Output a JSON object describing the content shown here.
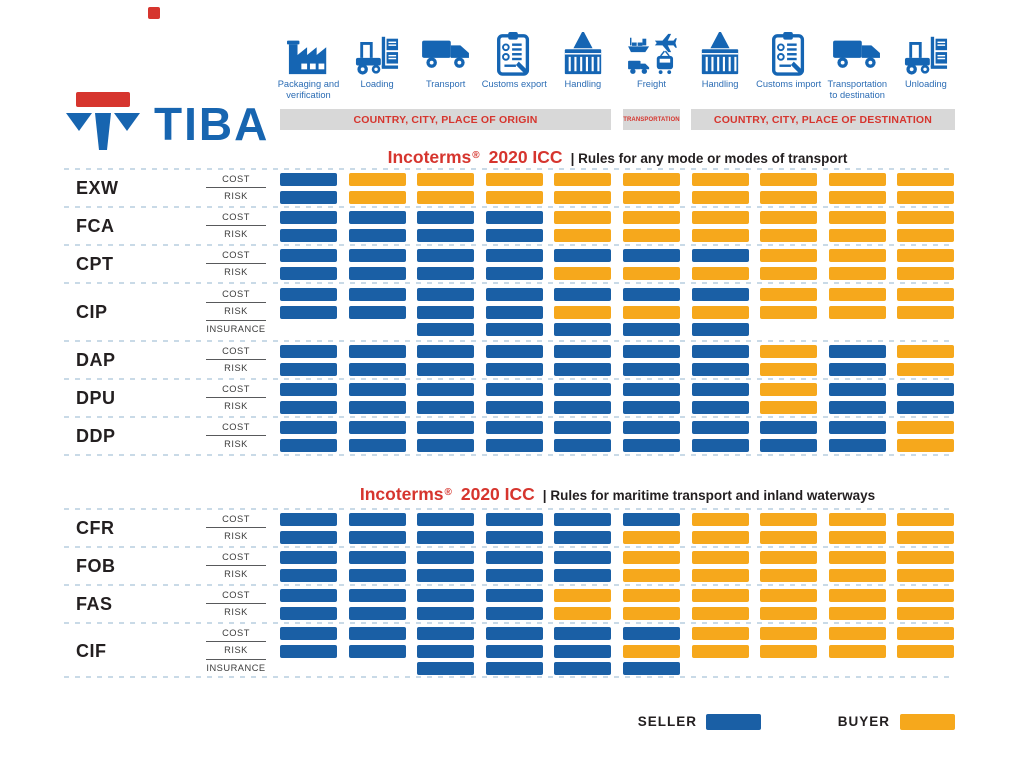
{
  "brand": {
    "name": "TIBA"
  },
  "stages": [
    {
      "label": "Packaging and verification",
      "icon": "factory-icon"
    },
    {
      "label": "Loading",
      "icon": "forklift-icon"
    },
    {
      "label": "Transport",
      "icon": "truck-icon"
    },
    {
      "label": "Customs export",
      "icon": "customs-clipboard-icon"
    },
    {
      "label": "Handling",
      "icon": "crane-container-icon"
    },
    {
      "label": "Freight",
      "icon": "multimodal-freight-icon"
    },
    {
      "label": "Handling",
      "icon": "crane-container-icon"
    },
    {
      "label": "Customs import",
      "icon": "customs-clipboard-icon"
    },
    {
      "label": "Transportation to destination",
      "icon": "truck-icon"
    },
    {
      "label": "Unloading",
      "icon": "forklift-icon"
    }
  ],
  "location_headers": {
    "origin": "COUNTRY, CITY, PLACE OF ORIGIN",
    "transportation": "TRANSPORTATION",
    "destination": "COUNTRY, CITY, PLACE OF DESTINATION"
  },
  "sections": [
    {
      "title_main": "Incoterms",
      "title_reg": "®",
      "title_year": "2020 ICC",
      "title_sub": "| Rules for any mode or modes of transport",
      "rows": [
        {
          "code": "EXW",
          "sub_rows": [
            {
              "label": "COST",
              "cells": [
                "S",
                "B",
                "B",
                "B",
                "B",
                "B",
                "B",
                "B",
                "B",
                "B"
              ]
            },
            {
              "label": "RISK",
              "cells": [
                "S",
                "B",
                "B",
                "B",
                "B",
                "B",
                "B",
                "B",
                "B",
                "B"
              ]
            }
          ]
        },
        {
          "code": "FCA",
          "sub_rows": [
            {
              "label": "COST",
              "cells": [
                "S",
                "S",
                "S",
                "S",
                "B",
                "B",
                "B",
                "B",
                "B",
                "B"
              ]
            },
            {
              "label": "RISK",
              "cells": [
                "S",
                "S",
                "S",
                "S",
                "B",
                "B",
                "B",
                "B",
                "B",
                "B"
              ]
            }
          ]
        },
        {
          "code": "CPT",
          "sub_rows": [
            {
              "label": "COST",
              "cells": [
                "S",
                "S",
                "S",
                "S",
                "S",
                "S",
                "S",
                "B",
                "B",
                "B"
              ]
            },
            {
              "label": "RISK",
              "cells": [
                "S",
                "S",
                "S",
                "S",
                "B",
                "B",
                "B",
                "B",
                "B",
                "B"
              ]
            }
          ]
        },
        {
          "code": "CIP",
          "sub_rows": [
            {
              "label": "COST",
              "cells": [
                "S",
                "S",
                "S",
                "S",
                "S",
                "S",
                "S",
                "B",
                "B",
                "B"
              ]
            },
            {
              "label": "RISK",
              "cells": [
                "S",
                "S",
                "S",
                "S",
                "B",
                "B",
                "B",
                "B",
                "B",
                "B"
              ]
            },
            {
              "label": "INSURANCE",
              "cells": [
                "N",
                "N",
                "S",
                "S",
                "S",
                "S",
                "S",
                "N",
                "N",
                "N"
              ]
            }
          ]
        },
        {
          "code": "DAP",
          "sub_rows": [
            {
              "label": "COST",
              "cells": [
                "S",
                "S",
                "S",
                "S",
                "S",
                "S",
                "S",
                "B",
                "S",
                "B"
              ]
            },
            {
              "label": "RISK",
              "cells": [
                "S",
                "S",
                "S",
                "S",
                "S",
                "S",
                "S",
                "B",
                "S",
                "B"
              ]
            }
          ]
        },
        {
          "code": "DPU",
          "sub_rows": [
            {
              "label": "COST",
              "cells": [
                "S",
                "S",
                "S",
                "S",
                "S",
                "S",
                "S",
                "B",
                "S",
                "S"
              ]
            },
            {
              "label": "RISK",
              "cells": [
                "S",
                "S",
                "S",
                "S",
                "S",
                "S",
                "S",
                "B",
                "S",
                "S"
              ]
            }
          ]
        },
        {
          "code": "DDP",
          "sub_rows": [
            {
              "label": "COST",
              "cells": [
                "S",
                "S",
                "S",
                "S",
                "S",
                "S",
                "S",
                "S",
                "S",
                "B"
              ]
            },
            {
              "label": "RISK",
              "cells": [
                "S",
                "S",
                "S",
                "S",
                "S",
                "S",
                "S",
                "S",
                "S",
                "B"
              ]
            }
          ]
        }
      ]
    },
    {
      "title_main": "Incoterms",
      "title_reg": "®",
      "title_year": "2020 ICC",
      "title_sub": "| Rules for maritime transport and inland waterways",
      "rows": [
        {
          "code": "CFR",
          "sub_rows": [
            {
              "label": "COST",
              "cells": [
                "S",
                "S",
                "S",
                "S",
                "S",
                "S",
                "B",
                "B",
                "B",
                "B"
              ]
            },
            {
              "label": "RISK",
              "cells": [
                "S",
                "S",
                "S",
                "S",
                "S",
                "B",
                "B",
                "B",
                "B",
                "B"
              ]
            }
          ]
        },
        {
          "code": "FOB",
          "sub_rows": [
            {
              "label": "COST",
              "cells": [
                "S",
                "S",
                "S",
                "S",
                "S",
                "B",
                "B",
                "B",
                "B",
                "B"
              ]
            },
            {
              "label": "RISK",
              "cells": [
                "S",
                "S",
                "S",
                "S",
                "S",
                "B",
                "B",
                "B",
                "B",
                "B"
              ]
            }
          ]
        },
        {
          "code": "FAS",
          "sub_rows": [
            {
              "label": "COST",
              "cells": [
                "S",
                "S",
                "S",
                "S",
                "B",
                "B",
                "B",
                "B",
                "B",
                "B"
              ]
            },
            {
              "label": "RISK",
              "cells": [
                "S",
                "S",
                "S",
                "S",
                "B",
                "B",
                "B",
                "B",
                "B",
                "B"
              ]
            }
          ]
        },
        {
          "code": "CIF",
          "sub_rows": [
            {
              "label": "COST",
              "cells": [
                "S",
                "S",
                "S",
                "S",
                "S",
                "S",
                "B",
                "B",
                "B",
                "B"
              ]
            },
            {
              "label": "RISK",
              "cells": [
                "S",
                "S",
                "S",
                "S",
                "S",
                "B",
                "B",
                "B",
                "B",
                "B"
              ]
            },
            {
              "label": "INSURANCE",
              "cells": [
                "N",
                "N",
                "S",
                "S",
                "S",
                "S",
                "N",
                "N",
                "N",
                "N"
              ]
            }
          ]
        }
      ]
    }
  ],
  "legend": {
    "seller_label": "SELLER",
    "buyer_label": "BUYER"
  },
  "colors": {
    "seller_blue": "#1A5FA5",
    "buyer_orange": "#F6A81C",
    "icon_blue": "#1565B3",
    "logo_blue": "#1765B0",
    "accent_red": "#D6352E",
    "header_gray": "#D8D8D8",
    "text_dark": "#231F20",
    "dash_line": "#C9DAE7"
  }
}
